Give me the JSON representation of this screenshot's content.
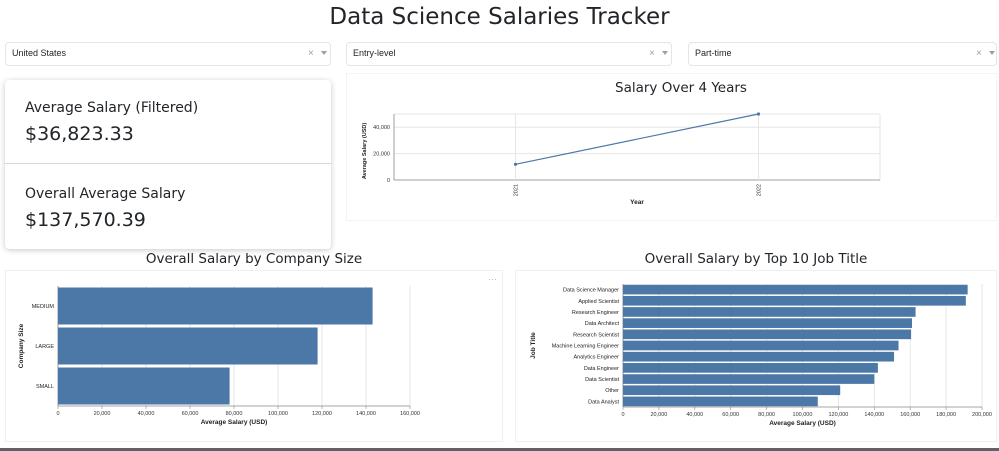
{
  "header": {
    "title": "Data Science Salaries Tracker"
  },
  "filters": {
    "country": {
      "value": "United States",
      "clear": "×"
    },
    "experience": {
      "value": "Entry-level",
      "clear": "×"
    },
    "employment": {
      "value": "Part-time",
      "clear": "×"
    }
  },
  "stats": {
    "filtered_label": "Average Salary (Filtered)",
    "filtered_value": "$36,823.33",
    "overall_label": "Overall Average Salary",
    "overall_value": "$137,570.39"
  },
  "colors": {
    "bar": "#4c78a8",
    "grid": "#e6e6e6"
  },
  "charts": {
    "line_title": "Salary Over 4 Years",
    "company_title": "Overall Salary by Company Size",
    "job_title_title": "Overall Salary by Top 10 Job Title",
    "menu": "···"
  },
  "chart_data": [
    {
      "type": "line",
      "title": "Salary Over 4 Years",
      "xlabel": "Year",
      "ylabel": "Average Salary (USD)",
      "categories": [
        "2021",
        "2022"
      ],
      "values": [
        11900,
        50000
      ],
      "ylim": [
        0,
        50000
      ],
      "yticks": [
        "0",
        "20,000",
        "40,000"
      ],
      "grid": true
    },
    {
      "type": "bar",
      "title": "Overall Salary by Company Size",
      "orientation": "horizontal",
      "xlabel": "Average Salary (USD)",
      "ylabel": "Company Size",
      "categories": [
        "MEDIUM",
        "LARGE",
        "SMALL"
      ],
      "values": [
        143000,
        118000,
        78000
      ],
      "xlim": [
        0,
        160000
      ],
      "xticks": [
        "0",
        "20,000",
        "40,000",
        "60,000",
        "80,000",
        "100,000",
        "120,000",
        "140,000",
        "160,000"
      ],
      "grid": true
    },
    {
      "type": "bar",
      "title": "Overall Salary by Top 10 Job Title",
      "orientation": "horizontal",
      "xlabel": "Average Salary (USD)",
      "ylabel": "Job Title",
      "categories": [
        "Data Science Manager",
        "Applied Scientist",
        "Research Engineer",
        "Data Architect",
        "Research Scientist",
        "Machine Learning Engineer",
        "Analytics Engineer",
        "Data Engineer",
        "Data Scientist",
        "Other",
        "Data Analyst"
      ],
      "values": [
        192000,
        191000,
        163000,
        161000,
        160500,
        153500,
        151000,
        142000,
        140000,
        121000,
        108500
      ],
      "xlim": [
        0,
        200000
      ],
      "xticks": [
        "0",
        "20,000",
        "40,000",
        "60,000",
        "80,000",
        "100,000",
        "120,000",
        "140,000",
        "160,000",
        "180,000",
        "200,000"
      ],
      "grid": true
    }
  ]
}
